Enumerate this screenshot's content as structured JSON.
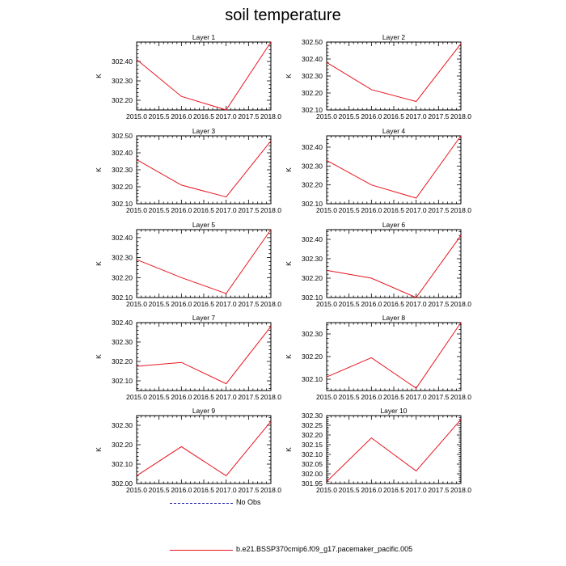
{
  "title": "soil temperature",
  "legend": {
    "entries": [
      {
        "label": "No Obs",
        "style": "dashed",
        "color": "#1a1aa6"
      },
      {
        "label": "b.e21.BSSP370cmip6.f09_g17.pacemaker_pacific.005",
        "style": "solid",
        "color": "#e8141e"
      }
    ]
  },
  "chart_data": [
    {
      "type": "line",
      "title": "Layer 1",
      "ylabel": "K",
      "x": [
        2015,
        2016,
        2017,
        2018
      ],
      "series": [
        {
          "values": [
            302.41,
            302.22,
            302.15,
            302.5
          ]
        }
      ],
      "xlim": [
        2015,
        2018
      ],
      "ylim": [
        302.15,
        302.5
      ],
      "xticks": [
        "2015.0",
        "2015.5",
        "2016.0",
        "2016.5",
        "2017.0",
        "2017.5",
        "2018.0"
      ],
      "yticks": [
        "302.20",
        "302.30",
        "302.40"
      ],
      "grid": false
    },
    {
      "type": "line",
      "title": "Layer 2",
      "ylabel": "K",
      "x": [
        2015,
        2016,
        2017,
        2018
      ],
      "series": [
        {
          "values": [
            302.38,
            302.22,
            302.15,
            302.49
          ]
        }
      ],
      "xlim": [
        2015,
        2018
      ],
      "ylim": [
        302.1,
        302.5
      ],
      "xticks": [
        "2015.0",
        "2015.5",
        "2016.0",
        "2016.5",
        "2017.0",
        "2017.5",
        "2018.0"
      ],
      "yticks": [
        "302.10",
        "302.20",
        "302.30",
        "302.40",
        "302.50"
      ],
      "grid": false
    },
    {
      "type": "line",
      "title": "Layer 3",
      "ylabel": "K",
      "x": [
        2015,
        2016,
        2017,
        2018
      ],
      "series": [
        {
          "values": [
            302.36,
            302.21,
            302.14,
            302.47
          ]
        }
      ],
      "xlim": [
        2015,
        2018
      ],
      "ylim": [
        302.1,
        302.5
      ],
      "xticks": [
        "2015.0",
        "2015.5",
        "2016.0",
        "2016.5",
        "2017.0",
        "2017.5",
        "2018.0"
      ],
      "yticks": [
        "302.10",
        "302.20",
        "302.30",
        "302.40",
        "302.50"
      ],
      "grid": false
    },
    {
      "type": "line",
      "title": "Layer 4",
      "ylabel": "K",
      "x": [
        2015,
        2016,
        2017,
        2018
      ],
      "series": [
        {
          "values": [
            302.33,
            302.2,
            302.13,
            302.46
          ]
        }
      ],
      "xlim": [
        2015,
        2018
      ],
      "ylim": [
        302.1,
        302.46
      ],
      "xticks": [
        "2015.0",
        "2015.5",
        "2016.0",
        "2016.5",
        "2017.0",
        "2017.5",
        "2018.0"
      ],
      "yticks": [
        "302.10",
        "302.20",
        "302.30",
        "302.40"
      ],
      "grid": false
    },
    {
      "type": "line",
      "title": "Layer 5",
      "ylabel": "K",
      "x": [
        2015,
        2016,
        2017,
        2018
      ],
      "series": [
        {
          "values": [
            302.29,
            302.2,
            302.12,
            302.44
          ]
        }
      ],
      "xlim": [
        2015,
        2018
      ],
      "ylim": [
        302.1,
        302.44
      ],
      "xticks": [
        "2015.0",
        "2015.5",
        "2016.0",
        "2016.5",
        "2017.0",
        "2017.5",
        "2018.0"
      ],
      "yticks": [
        "302.10",
        "302.20",
        "302.30",
        "302.40"
      ],
      "grid": false
    },
    {
      "type": "line",
      "title": "Layer 6",
      "ylabel": "K",
      "x": [
        2015,
        2016,
        2017,
        2018
      ],
      "series": [
        {
          "values": [
            302.24,
            302.2,
            302.1,
            302.42
          ]
        }
      ],
      "xlim": [
        2015,
        2018
      ],
      "ylim": [
        302.1,
        302.45
      ],
      "xticks": [
        "2015.0",
        "2015.5",
        "2016.0",
        "2016.5",
        "2017.0",
        "2017.5",
        "2018.0"
      ],
      "yticks": [
        "302.10",
        "302.20",
        "302.30",
        "302.40"
      ],
      "grid": false
    },
    {
      "type": "line",
      "title": "Layer 7",
      "ylabel": "K",
      "x": [
        2015,
        2016,
        2017,
        2018
      ],
      "series": [
        {
          "values": [
            302.175,
            302.195,
            302.085,
            302.38
          ]
        }
      ],
      "xlim": [
        2015,
        2018
      ],
      "ylim": [
        302.05,
        302.4
      ],
      "xticks": [
        "2015.0",
        "2015.5",
        "2016.0",
        "2016.5",
        "2017.0",
        "2017.5",
        "2018.0"
      ],
      "yticks": [
        "302.10",
        "302.20",
        "302.30",
        "302.40"
      ],
      "grid": false
    },
    {
      "type": "line",
      "title": "Layer 8",
      "ylabel": "K",
      "x": [
        2015,
        2016,
        2017,
        2018
      ],
      "series": [
        {
          "values": [
            302.11,
            302.195,
            302.06,
            302.35
          ]
        }
      ],
      "xlim": [
        2015,
        2018
      ],
      "ylim": [
        302.05,
        302.35
      ],
      "xticks": [
        "2015.0",
        "2015.5",
        "2016.0",
        "2016.5",
        "2017.0",
        "2017.5",
        "2018.0"
      ],
      "yticks": [
        "302.10",
        "302.20",
        "302.30"
      ],
      "grid": false
    },
    {
      "type": "line",
      "title": "Layer 9",
      "ylabel": "K",
      "x": [
        2015,
        2016,
        2017,
        2018
      ],
      "series": [
        {
          "values": [
            302.04,
            302.19,
            302.04,
            302.32
          ]
        }
      ],
      "xlim": [
        2015,
        2018
      ],
      "ylim": [
        302.0,
        302.35
      ],
      "xticks": [
        "2015.0",
        "2015.5",
        "2016.0",
        "2016.5",
        "2017.0",
        "2017.5",
        "2018.0"
      ],
      "yticks": [
        "302.00",
        "302.10",
        "302.20",
        "302.30"
      ],
      "grid": false
    },
    {
      "type": "line",
      "title": "Layer 10",
      "ylabel": "K",
      "x": [
        2015,
        2016,
        2017,
        2018
      ],
      "series": [
        {
          "values": [
            301.96,
            302.185,
            302.015,
            302.28
          ]
        }
      ],
      "xlim": [
        2015,
        2018
      ],
      "ylim": [
        301.95,
        302.3
      ],
      "xticks": [
        "2015.0",
        "2015.5",
        "2016.0",
        "2016.5",
        "2017.0",
        "2017.5",
        "2018.0"
      ],
      "yticks": [
        "301.95",
        "302.00",
        "302.05",
        "302.10",
        "302.15",
        "302.20",
        "302.25",
        "302.30"
      ],
      "grid": false
    }
  ]
}
